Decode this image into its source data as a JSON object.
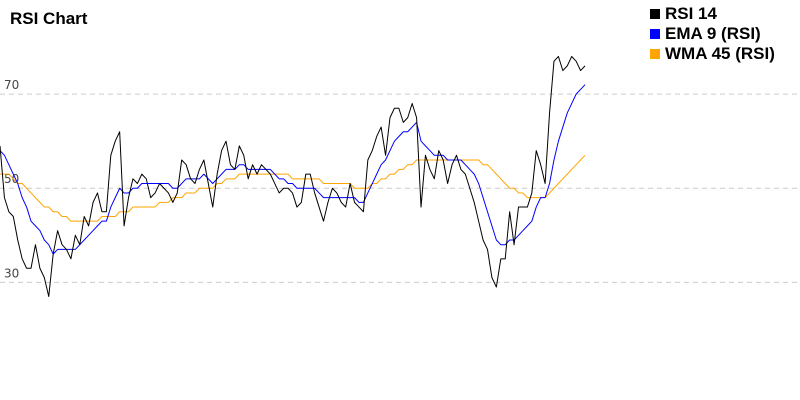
{
  "chart_data": {
    "type": "line",
    "title": "RSI Chart",
    "xlabel": "",
    "ylabel": "",
    "ylim": [
      5,
      90
    ],
    "grid": false,
    "legend_position": "top-right",
    "reference_lines": [
      {
        "y": 70,
        "label": "70",
        "style": "dashed"
      },
      {
        "y": 50,
        "label": "50",
        "style": "dashed"
      },
      {
        "y": 30,
        "label": "30",
        "style": "dashed"
      }
    ],
    "series": [
      {
        "name": "RSI 14",
        "color": "#000000",
        "values": [
          59,
          48,
          45,
          44,
          39,
          35,
          33,
          33,
          38,
          33,
          31,
          27,
          36,
          41,
          38,
          37,
          35,
          40,
          38,
          44,
          42,
          47,
          49,
          45,
          45,
          57,
          60,
          62,
          42,
          48,
          52,
          51,
          53,
          52,
          48,
          49,
          51,
          50,
          49,
          47,
          49,
          56,
          55,
          52,
          51,
          54,
          56,
          51,
          46,
          53,
          58,
          60,
          55,
          54,
          59,
          57,
          52,
          55,
          53,
          55,
          54,
          53,
          51,
          49,
          50,
          50,
          49,
          46,
          47,
          53,
          53,
          49,
          46,
          43,
          47,
          50,
          49,
          47,
          46,
          51,
          47,
          46,
          45,
          56,
          58,
          61,
          63,
          57,
          65,
          67,
          67,
          64,
          65,
          68,
          65,
          46,
          57,
          54,
          52,
          58,
          56,
          51,
          55,
          57,
          54,
          53,
          50,
          47,
          43,
          39,
          37,
          31,
          29,
          35,
          35,
          45,
          38,
          46,
          46,
          46,
          49,
          58,
          55,
          51,
          66,
          77,
          78,
          75,
          76,
          78,
          77,
          75,
          76
        ]
      },
      {
        "name": "EMA 9 (RSI)",
        "color": "#0000ff",
        "values": [
          58,
          57,
          55,
          53,
          51,
          48,
          46,
          43,
          42,
          41,
          39,
          38,
          36,
          37,
          37,
          37,
          37,
          37,
          38,
          39,
          40,
          41,
          42,
          43,
          43,
          46,
          48,
          50,
          49,
          49,
          50,
          50,
          51,
          51,
          51,
          51,
          51,
          51,
          51,
          50,
          50,
          51,
          52,
          52,
          52,
          52,
          53,
          52,
          51,
          52,
          53,
          54,
          54,
          54,
          55,
          55,
          54,
          54,
          54,
          54,
          54,
          54,
          53,
          52,
          52,
          51,
          51,
          50,
          50,
          50,
          50,
          50,
          49,
          48,
          48,
          48,
          48,
          48,
          48,
          48,
          48,
          47,
          47,
          49,
          51,
          53,
          55,
          56,
          58,
          60,
          61,
          62,
          62,
          63,
          64,
          60,
          59,
          58,
          57,
          57,
          57,
          56,
          56,
          56,
          56,
          55,
          54,
          53,
          51,
          48,
          45,
          42,
          39,
          38,
          38,
          39,
          39,
          40,
          41,
          42,
          43,
          46,
          48,
          48,
          51,
          56,
          60,
          63,
          66,
          68,
          70,
          71,
          72
        ]
      },
      {
        "name": "WMA 45 (RSI)",
        "color": "#ffa500",
        "values": [
          53,
          53,
          53,
          52,
          51,
          51,
          50,
          49,
          48,
          47,
          46,
          46,
          45,
          45,
          44,
          44,
          43,
          43,
          43,
          43,
          43,
          43,
          43,
          44,
          44,
          44,
          44,
          45,
          45,
          45,
          46,
          46,
          46,
          46,
          46,
          46,
          47,
          47,
          47,
          48,
          48,
          48,
          49,
          49,
          49,
          50,
          50,
          50,
          50,
          51,
          51,
          52,
          52,
          52,
          53,
          53,
          53,
          53,
          53,
          53,
          53,
          53,
          53,
          53,
          53,
          53,
          52,
          52,
          52,
          52,
          52,
          52,
          52,
          51,
          51,
          51,
          51,
          51,
          51,
          51,
          50,
          50,
          50,
          50,
          51,
          51,
          52,
          52,
          53,
          53,
          54,
          54,
          55,
          55,
          56,
          56,
          56,
          56,
          56,
          56,
          56,
          56,
          56,
          56,
          56,
          56,
          56,
          56,
          56,
          55,
          55,
          54,
          53,
          52,
          51,
          50,
          50,
          49,
          49,
          48,
          48,
          48,
          48,
          48,
          49,
          50,
          51,
          52,
          53,
          54,
          55,
          56,
          57
        ]
      }
    ]
  }
}
